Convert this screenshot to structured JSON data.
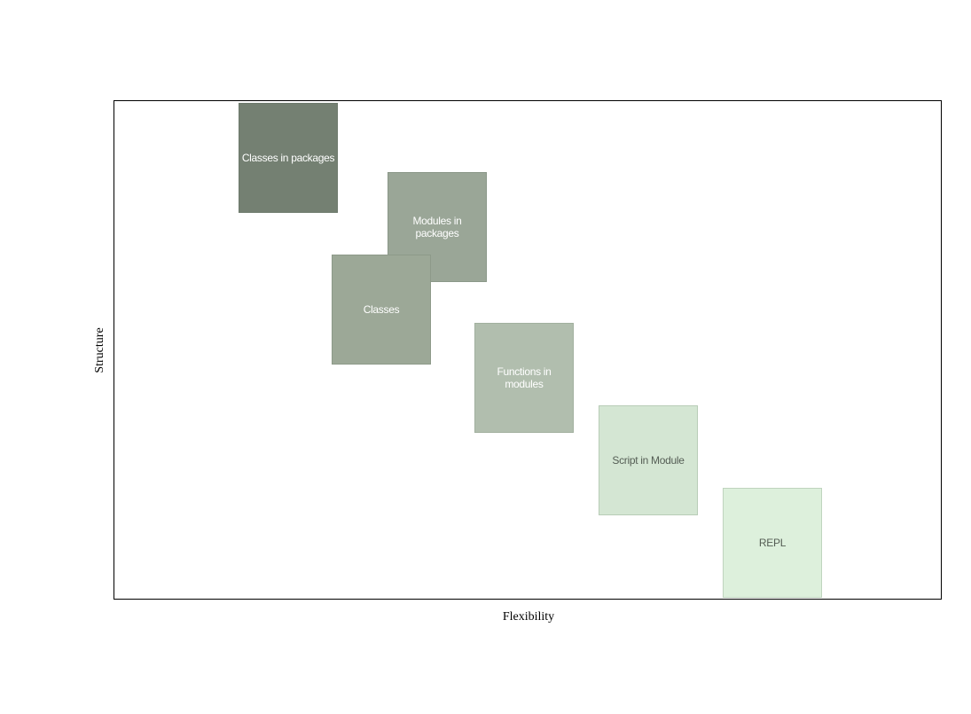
{
  "axes": {
    "x_label": "Flexibility",
    "y_label": "Structure"
  },
  "boxes": [
    {
      "label": "Classes in packages",
      "fill": "#748072",
      "border": "#6d7a6c",
      "text_color": "#ffffff"
    },
    {
      "label": "Modules in packages",
      "fill": "#9aa697",
      "border": "#8b9889",
      "text_color": "#ffffff"
    },
    {
      "label": "Classes",
      "fill": "#9ca897",
      "border": "#8d9a89",
      "text_color": "#ffffff"
    },
    {
      "label": "Functions in modules",
      "fill": "#b1beae",
      "border": "#a2b09f",
      "text_color": "#ffffff"
    },
    {
      "label": "Script in Module",
      "fill": "#d4e6d3",
      "border": "#b8ccb7",
      "text_color": "#555e55"
    },
    {
      "label": "REPL",
      "fill": "#ddf0dc",
      "border": "#bfd4be",
      "text_color": "#555e55"
    }
  ]
}
